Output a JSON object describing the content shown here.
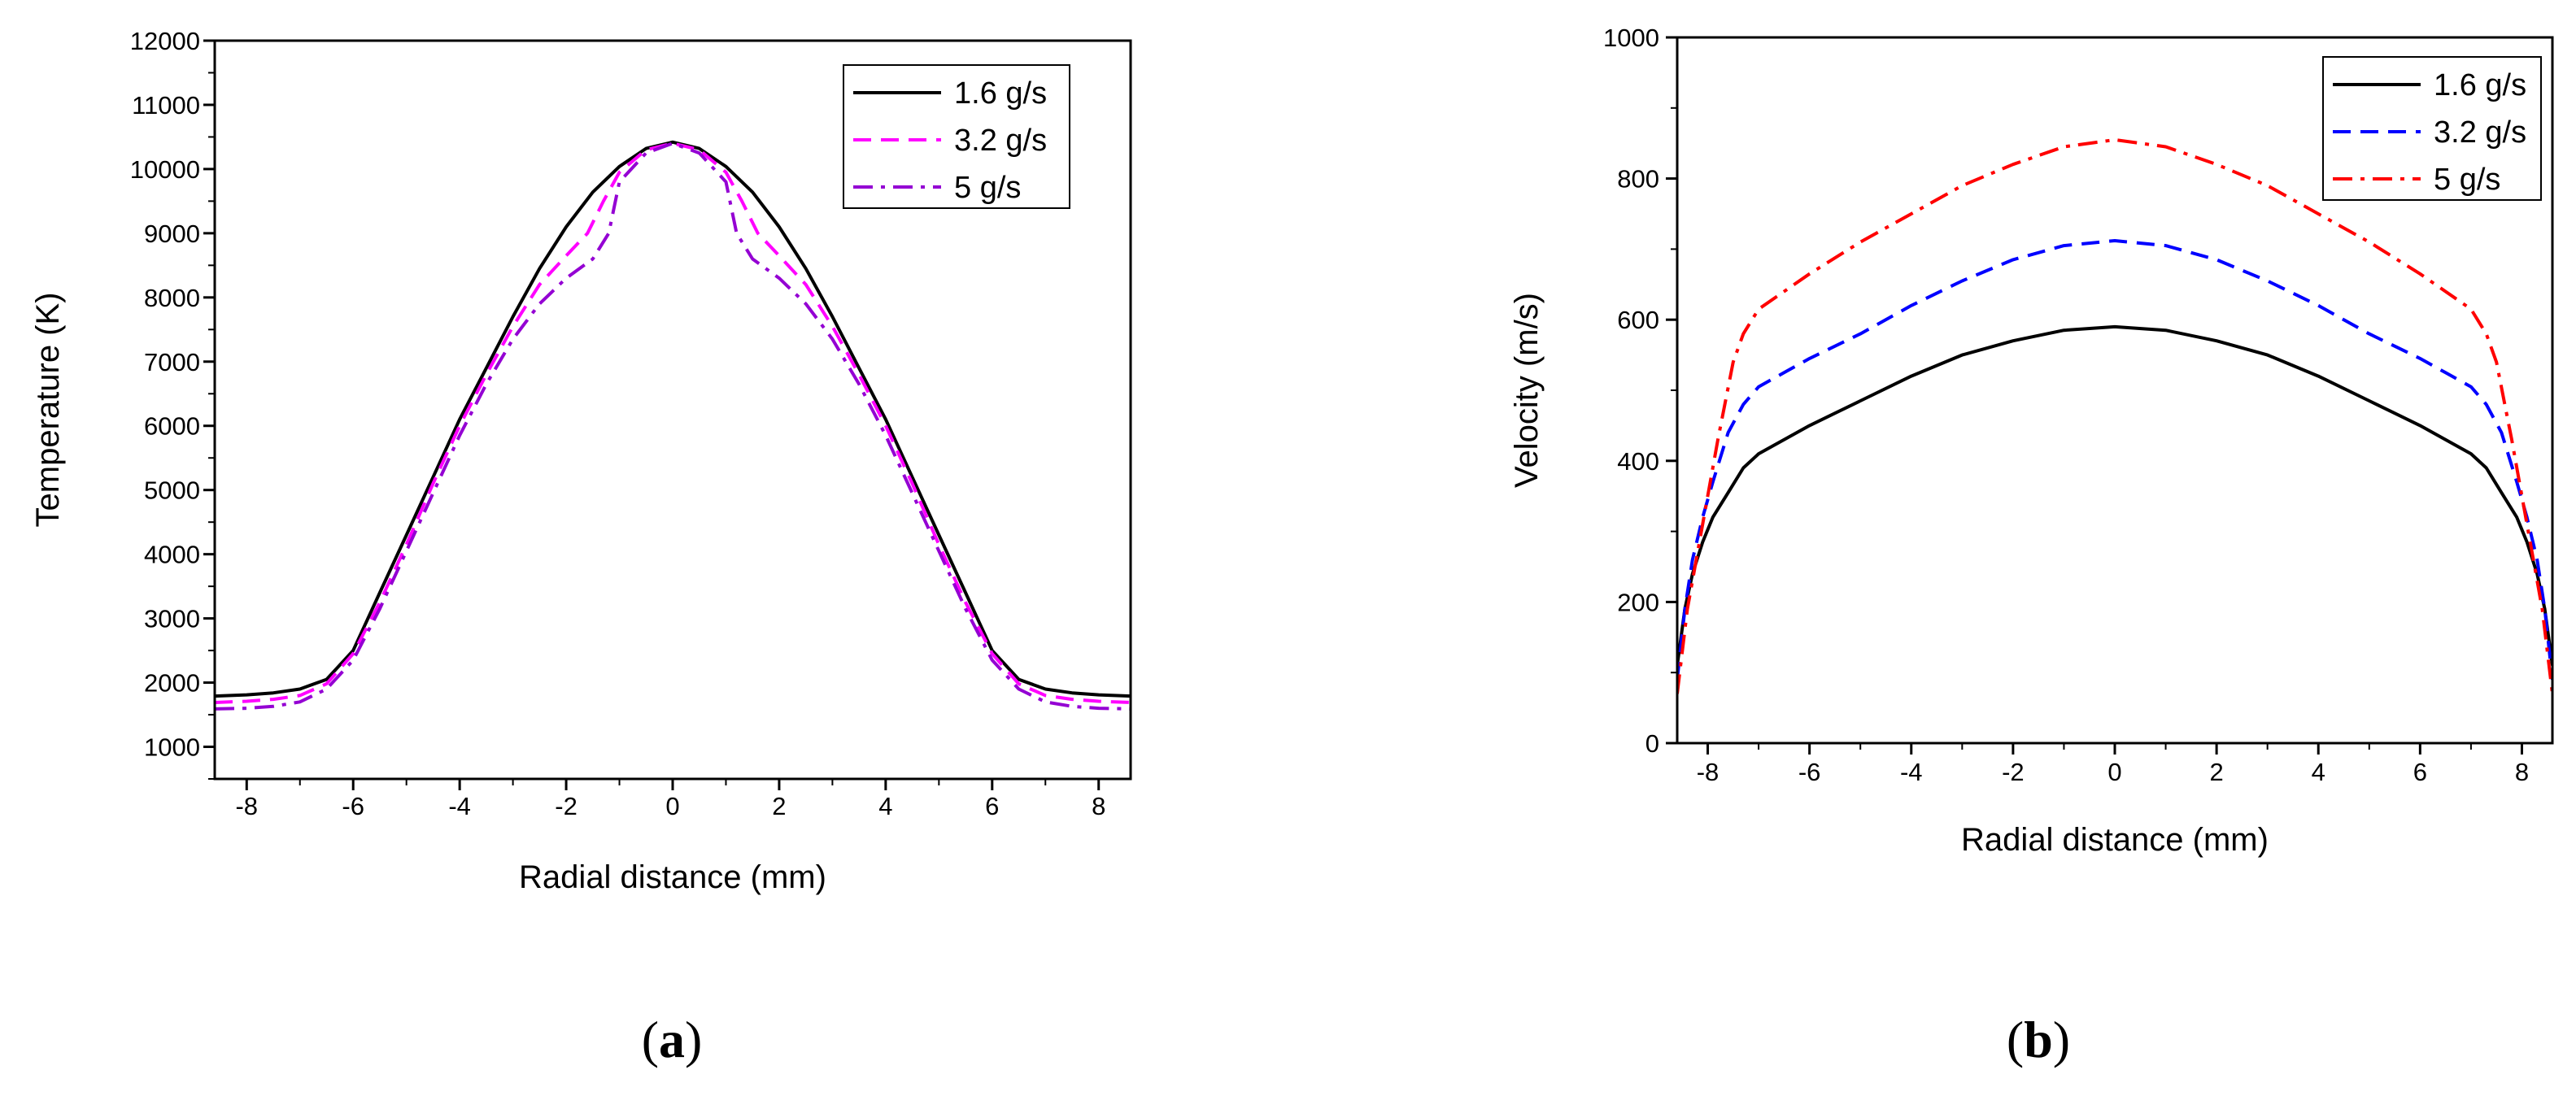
{
  "chart_data": [
    {
      "type": "line",
      "panel": "a",
      "title": "",
      "xlabel": "Radial distance (mm)",
      "ylabel": "Temperature (K)",
      "xlim": [
        -8.6,
        8.6
      ],
      "ylim": [
        500,
        12000
      ],
      "xticks": [
        -8,
        -6,
        -4,
        -2,
        0,
        2,
        4,
        6,
        8
      ],
      "yticks": [
        1000,
        2000,
        3000,
        4000,
        5000,
        6000,
        7000,
        8000,
        9000,
        10000,
        11000,
        12000
      ],
      "legend_position": "top-right",
      "series": [
        {
          "name": "1.6 g/s",
          "color": "#000000",
          "dash": "solid",
          "x": [
            0,
            0.5,
            1,
            1.5,
            2,
            2.5,
            3,
            3.5,
            4,
            4.5,
            5,
            5.5,
            6,
            6.5,
            7,
            7.5,
            8,
            8.6
          ],
          "y": [
            10420,
            10320,
            10040,
            9640,
            9100,
            8450,
            7700,
            6900,
            6100,
            5200,
            4300,
            3400,
            2500,
            2050,
            1900,
            1840,
            1810,
            1790
          ]
        },
        {
          "name": "3.2 g/s",
          "color": "#ff00ff",
          "dash": "dashed",
          "x": [
            0,
            0.5,
            1,
            1.3,
            1.6,
            2,
            2.5,
            3,
            3.5,
            4,
            4.5,
            5,
            5.5,
            6,
            6.5,
            7,
            7.5,
            8,
            8.6
          ],
          "y": [
            10400,
            10300,
            9950,
            9500,
            9000,
            8650,
            8200,
            7550,
            6800,
            6000,
            5100,
            4150,
            3250,
            2450,
            1980,
            1800,
            1740,
            1710,
            1690
          ]
        },
        {
          "name": "5 g/s",
          "color": "#9400d3",
          "dash": "dashdot",
          "x": [
            0,
            0.5,
            1,
            1.2,
            1.5,
            2,
            2.5,
            3,
            3.5,
            4,
            4.5,
            5,
            5.5,
            6,
            6.5,
            7,
            7.5,
            8,
            8.6
          ],
          "y": [
            10400,
            10250,
            9800,
            9000,
            8600,
            8300,
            7900,
            7350,
            6650,
            5850,
            4950,
            4050,
            3150,
            2350,
            1900,
            1700,
            1630,
            1600,
            1590
          ]
        }
      ]
    },
    {
      "type": "line",
      "panel": "b",
      "title": "",
      "xlabel": "Radial distance (mm)",
      "ylabel": "Velocity (m/s)",
      "xlim": [
        -8.6,
        8.6
      ],
      "ylim": [
        0,
        1000
      ],
      "xticks": [
        -8,
        -6,
        -4,
        -2,
        0,
        2,
        4,
        6,
        8
      ],
      "yticks": [
        0,
        200,
        400,
        600,
        800,
        1000
      ],
      "legend_position": "top-right",
      "series": [
        {
          "name": "1.6 g/s",
          "color": "#000000",
          "dash": "solid",
          "x": [
            0,
            1,
            2,
            3,
            4,
            5,
            6,
            6.5,
            7,
            7.3,
            7.6,
            7.9,
            8.1,
            8.3,
            8.45,
            8.6
          ],
          "y": [
            590,
            585,
            570,
            550,
            520,
            485,
            450,
            430,
            410,
            390,
            355,
            320,
            285,
            240,
            190,
            110
          ]
        },
        {
          "name": "3.2 g/s",
          "color": "#0000ff",
          "dash": "dashed",
          "x": [
            0,
            1,
            2,
            3,
            4,
            5,
            6,
            6.5,
            7,
            7.3,
            7.6,
            7.9,
            8.1,
            8.3,
            8.45,
            8.6
          ],
          "y": [
            712,
            705,
            685,
            655,
            620,
            580,
            545,
            525,
            505,
            480,
            440,
            370,
            320,
            260,
            190,
            90
          ]
        },
        {
          "name": "5 g/s",
          "color": "#ff0000",
          "dash": "dashdot",
          "x": [
            0,
            1,
            2,
            3,
            4,
            5,
            6,
            6.5,
            7,
            7.3,
            7.5,
            7.8,
            8.0,
            8.2,
            8.4,
            8.6
          ],
          "y": [
            855,
            845,
            820,
            790,
            750,
            710,
            665,
            640,
            615,
            580,
            540,
            430,
            350,
            270,
            190,
            70
          ]
        }
      ]
    }
  ],
  "panel_labels": {
    "a": "a",
    "b": "b",
    "open": "(",
    "close": ")"
  }
}
